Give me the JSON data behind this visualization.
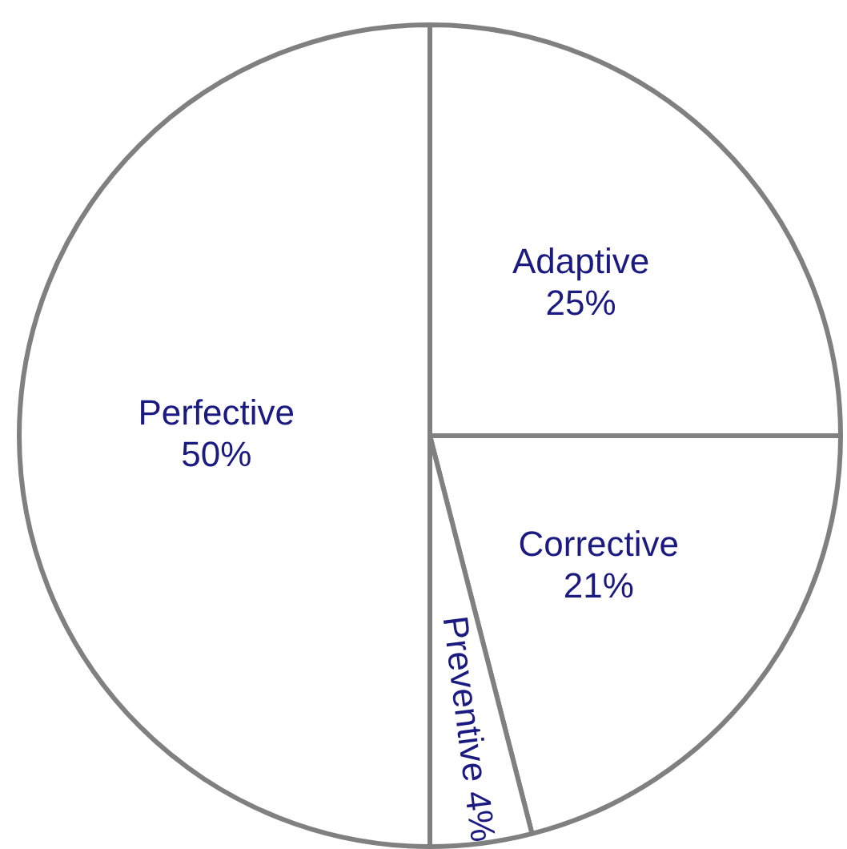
{
  "chart_data": {
    "type": "pie",
    "categories": [
      "Adaptive",
      "Corrective",
      "Preventive",
      "Perfective"
    ],
    "values": [
      25,
      21,
      4,
      50
    ],
    "colors": [
      "#ffffff",
      "#ffffff",
      "#ffffff",
      "#ffffff"
    ],
    "value_labels": [
      "25%",
      "21%",
      "4%",
      "50%"
    ],
    "legend": false
  }
}
